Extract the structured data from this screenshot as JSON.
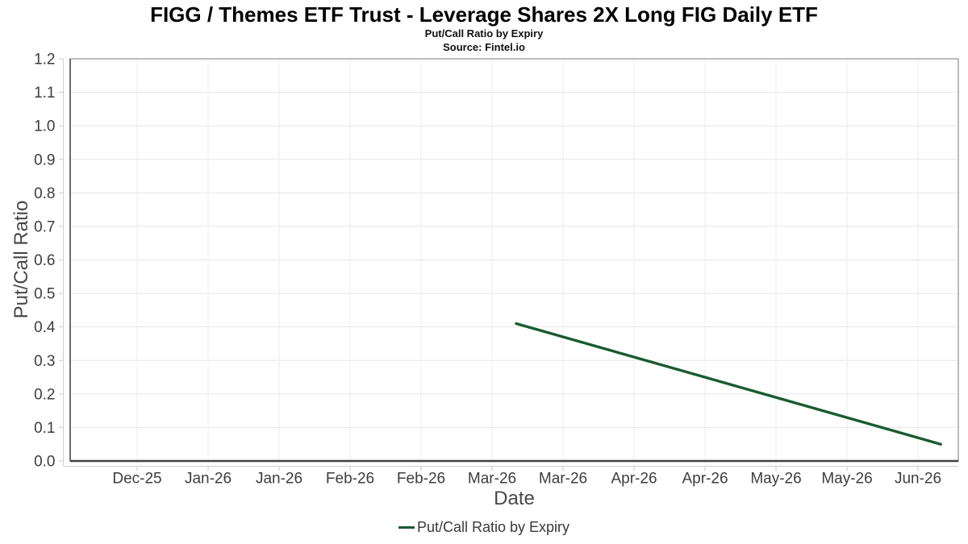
{
  "chart_data": {
    "type": "line",
    "title": "FIGG / Themes ETF Trust - Leverage Shares 2X Long FIG Daily ETF",
    "subtitle": "Put/Call Ratio by Expiry",
    "source": "Source: Fintel.io",
    "xlabel": "Date",
    "ylabel": "Put/Call Ratio",
    "ylim": [
      0.0,
      1.2
    ],
    "y_tick_step": 0.1,
    "y_tick_labels": [
      "0.0",
      "0.1",
      "0.2",
      "0.3",
      "0.4",
      "0.5",
      "0.6",
      "0.7",
      "0.8",
      "0.9",
      "1.0",
      "1.1",
      "1.2"
    ],
    "x_tick_labels": [
      "Dec-25",
      "Jan-26",
      "Jan-26",
      "Feb-26",
      "Feb-26",
      "Mar-26",
      "Mar-26",
      "Apr-26",
      "Apr-26",
      "May-26",
      "May-26",
      "Jun-26"
    ],
    "grid": true,
    "legend_position": "bottom-center",
    "series": [
      {
        "name": "Put/Call Ratio by Expiry",
        "color": "#1b5a30",
        "x_units": "tick-index (0 = Dec-25 tick, 11 = Jun-26 tick)",
        "points": [
          {
            "x": 5.34,
            "y": 0.41
          },
          {
            "x": 11.32,
            "y": 0.05
          }
        ]
      }
    ]
  }
}
